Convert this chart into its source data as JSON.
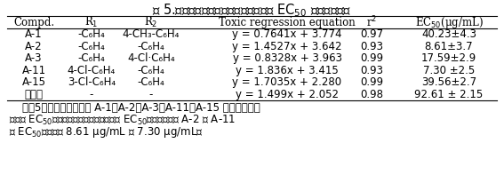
{
  "title": "表 5.部分目标化合物对水稻白叶枯病菌 EC$_{50}$ 活性测试结果",
  "col_headers": [
    "Compd.",
    "R$_1$",
    "R$_2$",
    "Toxic regression equation",
    "r$^2$",
    "EC$_{50}$(μg/mL)"
  ],
  "table_data": [
    [
      "A-1",
      "-C₆H₄",
      "4-CH₃-C₆H₄",
      "y = 0.7641x + 3.774",
      "0.97",
      "40.23±4.3"
    ],
    [
      "A-2",
      "-C₆H₄",
      "-C₆H₄",
      "y = 1.4527x + 3.642",
      "0.93",
      "8.61±3.7"
    ],
    [
      "A-3",
      "-C₆H₄",
      "4-Cl·C₆H₄",
      "y = 0.8328x + 3.963",
      "0.99",
      "17.59±2.9"
    ],
    [
      "A-11",
      "4-Cl-C₆H₄",
      "-C₆H₄",
      "y = 1.836x + 3.415",
      "0.93",
      "7.30 ±2.5"
    ],
    [
      "A-15",
      "3-Cl-C₆H₄",
      "-C₆H₄",
      "y = 1.7035x + 2.280",
      "0.99",
      "39.56±2.7"
    ],
    [
      "叶枯唇",
      "-",
      "-",
      "y = 1.499x + 2.052",
      "0.98",
      "92.61 ± 2.15"
    ]
  ],
  "para_line1": "    从表5中可也看出化合物 A-1，A-2，A-3，A-11，A-15 对水稻白叶枯",
  "para_line2": "病菌的 EC$_{50}$均远远低于对照药剂叶枯唇的 EC$_{50}$，其中化合物 A-2 和 A-11",
  "para_line3": "的 EC$_{50}$値分别为 8.61 μg/mL 和 7.30 μg/mL。",
  "background_color": "#ffffff",
  "text_color": "#000000",
  "font_size": 8.5,
  "title_font_size": 10.5
}
